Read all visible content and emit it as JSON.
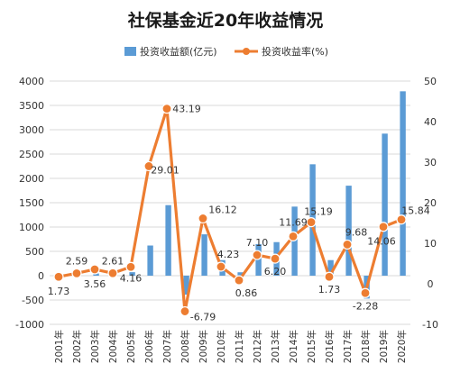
{
  "chart_data": {
    "type": "bar+line",
    "title": "社保基金近20年收益情况",
    "categories": [
      "2001年",
      "2002年",
      "2003年",
      "2004年",
      "2005年",
      "2006年",
      "2007年",
      "2008年",
      "2009年",
      "2010年",
      "2011年",
      "2012年",
      "2013年",
      "2014年",
      "2015年",
      "2016年",
      "2017年",
      "2018年",
      "2019年",
      "2020年"
    ],
    "series": [
      {
        "name": "投资收益额(亿元)",
        "type": "bar",
        "axis": "left",
        "color": "#5b9bd5",
        "values": [
          8,
          19,
          45,
          37,
          72,
          620,
          1450,
          -390,
          850,
          320,
          70,
          650,
          690,
          1420,
          2290,
          320,
          1850,
          -470,
          2920,
          3790
        ]
      },
      {
        "name": "投资收益率(%)",
        "type": "line",
        "axis": "right",
        "color": "#ed7d31",
        "values": [
          1.73,
          2.59,
          3.56,
          2.61,
          4.16,
          29.01,
          43.19,
          -6.79,
          16.12,
          4.23,
          0.86,
          7.1,
          6.2,
          11.69,
          15.19,
          1.73,
          9.68,
          -2.28,
          14.06,
          15.84
        ],
        "labels": [
          "1.73",
          "2.59",
          "3.56",
          "2.61",
          "4.16",
          "29.01",
          "43.19",
          "-6.79",
          "16.12",
          "4.23",
          "0.86",
          "7.10",
          "6.20",
          "11.69",
          "15.19",
          "1.73",
          "9.68",
          "-2.28",
          "14.06",
          "15.84"
        ]
      }
    ],
    "y_left": {
      "range": [
        -1000,
        4000
      ],
      "ticks": [
        "-1000",
        "-500",
        "0",
        "500",
        "1000",
        "1500",
        "2000",
        "2500",
        "3000",
        "3500",
        "4000"
      ]
    },
    "y_right": {
      "range": [
        -10,
        50
      ],
      "ticks": [
        "-10",
        "0",
        "10",
        "20",
        "30",
        "40",
        "50"
      ]
    },
    "grid": true,
    "legend": "top-right"
  }
}
